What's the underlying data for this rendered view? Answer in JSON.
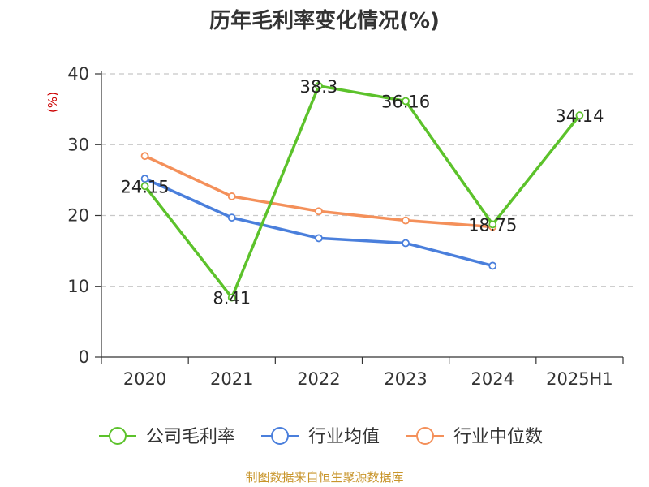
{
  "chart_data": {
    "type": "line",
    "title": "历年毛利率变化情况(%)",
    "ylabel": "(%)",
    "categories": [
      "2020",
      "2021",
      "2022",
      "2023",
      "2024",
      "2025H1"
    ],
    "ylim": [
      0,
      40
    ],
    "yticks": [
      "0",
      "10",
      "20",
      "30",
      "40"
    ],
    "grid": true,
    "legend_position": "bottom",
    "series": [
      {
        "name": "公司毛利率",
        "color": "#5cc22b",
        "values": [
          24.15,
          8.41,
          38.3,
          36.16,
          18.75,
          34.14
        ],
        "labels": [
          "24.15",
          "8.41",
          "38.3",
          "36.16",
          "18.75",
          "34.14"
        ]
      },
      {
        "name": "行业均值",
        "color": "#4a7fdc",
        "values": [
          25.2,
          19.7,
          16.8,
          16.1,
          12.9,
          null
        ]
      },
      {
        "name": "行业中位数",
        "color": "#f4905a",
        "values": [
          28.4,
          22.7,
          20.6,
          19.3,
          18.4,
          null
        ]
      }
    ]
  },
  "source": "制图数据来自恒生聚源数据库"
}
